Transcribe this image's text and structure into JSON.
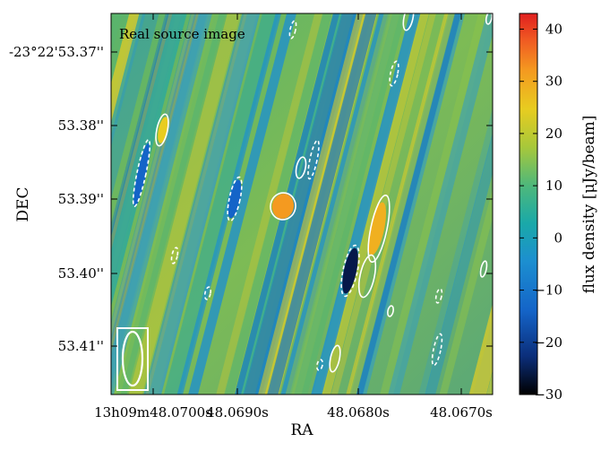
{
  "chart_data": {
    "type": "heatmap",
    "annotation": "Real source image",
    "xlabel": "RA",
    "ylabel": "DEC",
    "x_ticks": [
      "13h09m48.0700s",
      "48.0690s",
      "48.0680s",
      "48.0670s"
    ],
    "y_ticks": [
      "-23°22'53.37''",
      "53.38''",
      "53.39''",
      "53.40''",
      "53.41''"
    ],
    "colorbar": {
      "label": "flux density [μJy/beam]",
      "ticks": [
        40,
        30,
        20,
        10,
        0,
        -10,
        -20,
        -30
      ],
      "range": [
        -30,
        43
      ],
      "colormap": "jet"
    },
    "contour_color": "#ffffff",
    "beam_color": "#ffffff",
    "grid": false
  }
}
